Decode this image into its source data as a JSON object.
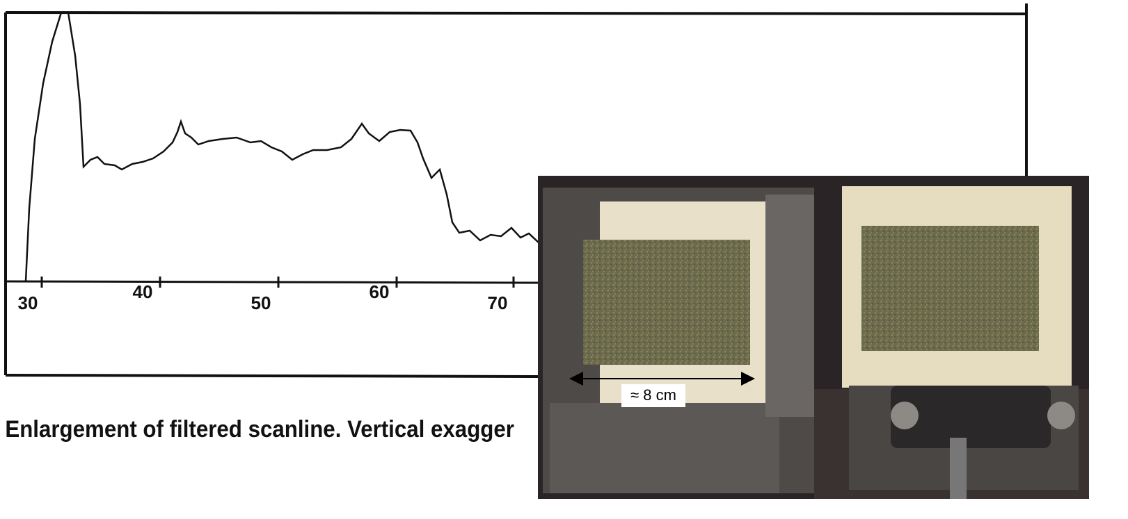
{
  "figure": {
    "tick_labels": [
      "30",
      "40",
      "50",
      "60",
      "70"
    ],
    "caption": "Enlargement of filtered scanline. Vertical exagger",
    "photo_label": "≈ 8 cm"
  }
}
